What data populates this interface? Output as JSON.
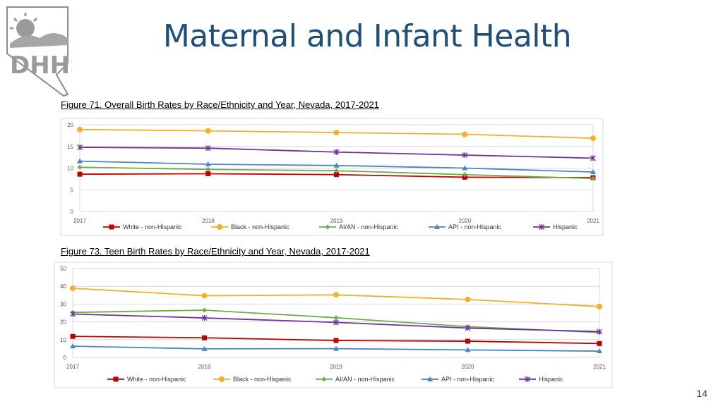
{
  "slide": {
    "title": "Maternal and Infant Health",
    "page_number": "14"
  },
  "logo": {
    "text": "DHHS"
  },
  "captions": {
    "fig71": "Figure 71. Overall Birth Rates by Race/Ethnicity and Year, Nevada, 2017-2021",
    "fig73": "Figure 73. Teen Birth Rates by Race/Ethnicity and Year, Nevada, 2017-2021"
  },
  "colors": {
    "white_nh": "#c00000",
    "black_nh": "#f5b02a",
    "aian_nh": "#70ad47",
    "api_nh": "#4a86c8",
    "hispanic": "#7030a0",
    "grid": "#d9d9d9"
  },
  "chart_data": [
    {
      "id": "fig71",
      "type": "line",
      "title": "Figure 71. Overall Birth Rates by Race/Ethnicity and Year, Nevada, 2017-2021",
      "categories": [
        "2017",
        "2018",
        "2019",
        "2020",
        "2021"
      ],
      "ylim": [
        0,
        20
      ],
      "yticks": [
        0,
        5,
        10,
        15,
        20
      ],
      "grid": true,
      "legend": "bottom",
      "series": [
        {
          "name": "White - non-Hispanic",
          "color": "#c00000",
          "marker": "square",
          "values": [
            8.6,
            8.7,
            8.5,
            7.9,
            7.8
          ]
        },
        {
          "name": "Black - non-Hispanic",
          "color": "#f5b02a",
          "marker": "circle",
          "values": [
            18.9,
            18.6,
            18.2,
            17.8,
            16.9
          ]
        },
        {
          "name": "AI/AN - non-Hispanic",
          "color": "#70ad47",
          "marker": "diamond",
          "values": [
            10.2,
            9.7,
            9.4,
            8.5,
            7.6
          ]
        },
        {
          "name": "API - non-Hispanic",
          "color": "#4a86c8",
          "marker": "triangle",
          "values": [
            11.6,
            10.9,
            10.6,
            10.0,
            9.1
          ]
        },
        {
          "name": "Hispanic",
          "color": "#7030a0",
          "marker": "star",
          "values": [
            14.8,
            14.6,
            13.7,
            13.0,
            12.3
          ]
        }
      ]
    },
    {
      "id": "fig73",
      "type": "line",
      "title": "Figure 73. Teen Birth Rates by Race/Ethnicity and Year, Nevada, 2017-2021",
      "categories": [
        "2017",
        "2018",
        "2019",
        "2020",
        "2021"
      ],
      "ylim": [
        0,
        50
      ],
      "yticks": [
        0,
        10,
        20,
        30,
        40,
        50
      ],
      "grid": true,
      "legend": "bottom",
      "series": [
        {
          "name": "White - non-Hispanic",
          "color": "#c00000",
          "marker": "square",
          "values": [
            11.8,
            11.0,
            9.5,
            9.1,
            7.8
          ]
        },
        {
          "name": "Black - non-Hispanic",
          "color": "#f5b02a",
          "marker": "circle",
          "values": [
            38.9,
            34.7,
            35.2,
            32.6,
            28.6
          ]
        },
        {
          "name": "AI/AN - non-Hispanic",
          "color": "#70ad47",
          "marker": "diamond",
          "values": [
            25.3,
            26.6,
            22.3,
            17.3,
            14.0
          ]
        },
        {
          "name": "API - non-Hispanic",
          "color": "#4a86c8",
          "marker": "triangle",
          "values": [
            6.3,
            4.8,
            4.9,
            4.2,
            3.5
          ]
        },
        {
          "name": "Hispanic",
          "color": "#7030a0",
          "marker": "star",
          "values": [
            24.4,
            22.2,
            19.7,
            16.5,
            14.5
          ]
        }
      ]
    }
  ]
}
